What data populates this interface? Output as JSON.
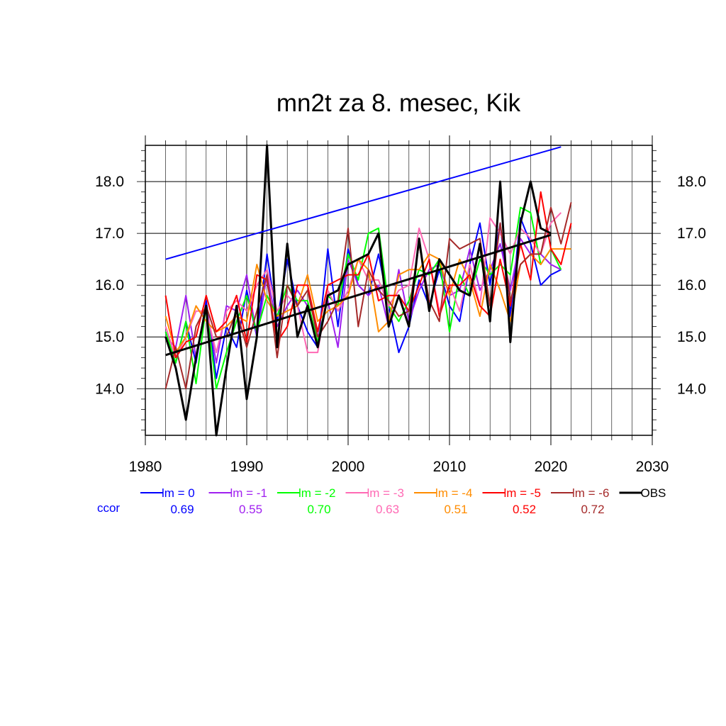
{
  "chart_data": {
    "type": "line",
    "title": "mn2t za 8. mesec, Kik",
    "xlabel": "",
    "ylabel": "",
    "xlim": [
      1980,
      2030
    ],
    "ylim": [
      13.1,
      18.7
    ],
    "x_ticks": [
      "1980",
      "1990",
      "2000",
      "2010",
      "2020",
      "2030"
    ],
    "y_ticks": [
      "14.0",
      "15.0",
      "16.0",
      "17.0",
      "18.0"
    ],
    "x_tick_values": [
      1980,
      1990,
      2000,
      2010,
      2020,
      2030
    ],
    "y_tick_values": [
      14.0,
      15.0,
      16.0,
      17.0,
      18.0
    ],
    "grid": true,
    "ccor_label": "ccor",
    "x": [
      1982,
      1983,
      1984,
      1985,
      1986,
      1987,
      1988,
      1989,
      1990,
      1991,
      1992,
      1993,
      1994,
      1995,
      1996,
      1997,
      1998,
      1999,
      2000,
      2001,
      2002,
      2003,
      2004,
      2005,
      2006,
      2007,
      2008,
      2009,
      2010,
      2011,
      2012,
      2013,
      2014,
      2015,
      2016,
      2017,
      2018,
      2019,
      2020,
      2021,
      2022
    ],
    "series": [
      {
        "name": "lm = 0",
        "color": "#0000ff",
        "ccor": "0.69",
        "values": [
          15.1,
          14.5,
          15.3,
          14.5,
          15.7,
          14.2,
          15.2,
          14.8,
          15.9,
          15.0,
          16.6,
          15.3,
          16.5,
          15.6,
          15.1,
          14.8,
          16.7,
          15.2,
          16.7,
          16.0,
          15.8,
          16.6,
          15.6,
          14.7,
          15.2,
          16.1,
          15.6,
          16.3,
          15.6,
          15.3,
          16.4,
          17.2,
          16.0,
          17.2,
          15.4,
          17.3,
          16.8,
          16.0,
          16.2,
          16.3,
          null
        ]
      },
      {
        "name": "lm = -1",
        "color": "#a020f0",
        "ccor": "0.55",
        "values": [
          15.0,
          14.8,
          15.8,
          14.6,
          15.6,
          14.5,
          15.6,
          15.5,
          16.2,
          15.0,
          16.2,
          15.2,
          15.6,
          15.9,
          15.6,
          15.0,
          15.7,
          14.8,
          16.5,
          16.0,
          15.8,
          16.0,
          15.2,
          16.3,
          15.3,
          15.9,
          16.3,
          16.4,
          15.8,
          15.9,
          16.7,
          15.9,
          16.3,
          16.8,
          15.9,
          16.9,
          16.6,
          16.6,
          16.4,
          16.3,
          null
        ]
      },
      {
        "name": "lm = -2",
        "color": "#00ff00",
        "ccor": "0.70",
        "values": [
          15.1,
          14.5,
          15.3,
          14.1,
          15.6,
          14.0,
          14.7,
          15.3,
          15.8,
          15.1,
          15.8,
          15.4,
          16.0,
          15.7,
          15.7,
          14.9,
          15.8,
          15.6,
          16.6,
          16.1,
          17.0,
          17.1,
          15.6,
          15.3,
          15.7,
          16.3,
          16.2,
          16.5,
          15.1,
          16.2,
          15.8,
          16.5,
          16.2,
          16.4,
          16.2,
          17.5,
          17.4,
          16.4,
          16.7,
          16.3,
          null
        ]
      },
      {
        "name": "lm = -3",
        "color": "#ff69b4",
        "ccor": "0.63",
        "values": [
          15.2,
          14.6,
          15.0,
          15.5,
          15.5,
          14.7,
          15.5,
          15.7,
          15.5,
          16.0,
          16.3,
          15.5,
          15.8,
          15.6,
          14.7,
          14.7,
          15.9,
          15.5,
          15.9,
          16.5,
          16.1,
          16.1,
          15.6,
          15.9,
          16.0,
          17.1,
          16.5,
          15.5,
          16.0,
          15.5,
          16.4,
          15.6,
          17.3,
          17.0,
          16.6,
          17.1,
          16.9,
          16.6,
          17.2,
          17.4,
          null
        ]
      },
      {
        "name": "lm = -4",
        "color": "#ff8c00",
        "ccor": "0.51",
        "values": [
          15.4,
          14.7,
          15.0,
          15.6,
          15.3,
          15.1,
          15.2,
          15.4,
          15.3,
          16.4,
          15.7,
          15.4,
          15.5,
          15.6,
          16.2,
          15.3,
          15.5,
          15.6,
          15.8,
          16.5,
          16.3,
          15.1,
          15.3,
          16.2,
          16.3,
          16.3,
          16.6,
          16.5,
          15.8,
          16.5,
          16.1,
          15.4,
          16.4,
          15.9,
          15.3,
          16.4,
          16.6,
          16.4,
          16.7,
          16.7,
          16.7
        ]
      },
      {
        "name": "lm = -5",
        "color": "#ff0000",
        "ccor": "0.52",
        "values": [
          15.8,
          14.6,
          14.9,
          15.0,
          15.8,
          15.1,
          15.3,
          15.8,
          14.9,
          16.2,
          16.1,
          14.9,
          15.2,
          16.0,
          16.0,
          15.1,
          16.0,
          16.1,
          16.2,
          16.2,
          16.6,
          15.7,
          15.8,
          15.8,
          15.5,
          16.0,
          16.5,
          15.4,
          16.0,
          16.0,
          16.2,
          15.6,
          15.4,
          16.5,
          15.6,
          16.8,
          16.1,
          17.8,
          16.7,
          16.4,
          17.2
        ]
      },
      {
        "name": "lm = -6",
        "color": "#a52a2a",
        "ccor": "0.72",
        "values": [
          14.0,
          14.8,
          14.0,
          15.2,
          15.6,
          15.0,
          15.0,
          15.5,
          14.8,
          15.5,
          16.2,
          14.6,
          16.0,
          15.6,
          15.9,
          15.0,
          15.3,
          15.7,
          17.1,
          15.2,
          16.3,
          15.9,
          15.7,
          15.4,
          15.5,
          16.8,
          15.7,
          15.3,
          16.9,
          16.7,
          16.8,
          16.9,
          15.6,
          17.2,
          15.7,
          16.4,
          16.6,
          16.6,
          17.5,
          16.8,
          17.6
        ]
      },
      {
        "name": "OBS",
        "color": "#000000",
        "ccor": "",
        "values": [
          15.0,
          14.4,
          13.4,
          14.6,
          15.6,
          13.1,
          14.4,
          15.6,
          13.8,
          15.0,
          18.7,
          14.8,
          16.8,
          15.0,
          15.6,
          14.8,
          15.8,
          15.9,
          16.4,
          16.5,
          16.6,
          17.0,
          15.2,
          15.8,
          15.2,
          16.9,
          15.5,
          16.5,
          16.2,
          15.9,
          15.8,
          16.8,
          15.3,
          18.0,
          14.9,
          17.2,
          18.0,
          17.1,
          17.0,
          null,
          null
        ]
      }
    ],
    "trend_lines": [
      {
        "name": "lm = 0 trend",
        "color": "#0000ff",
        "x": [
          1982,
          2021
        ],
        "y": [
          16.5,
          18.67
        ]
      },
      {
        "name": "OBS trend",
        "color": "#000000",
        "x": [
          1982,
          2020
        ],
        "y": [
          14.65,
          16.97
        ]
      }
    ]
  }
}
